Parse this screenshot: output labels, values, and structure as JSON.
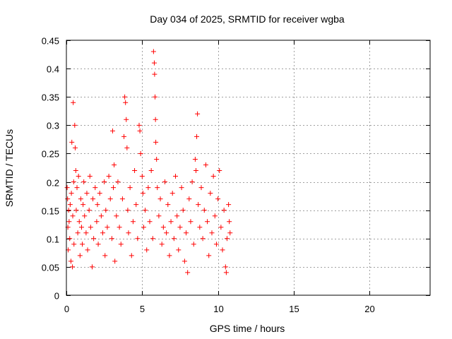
{
  "chart_data": {
    "type": "scatter",
    "title": "Day 034 of 2025, SRMTID for receiver wgba",
    "xlabel": "GPS time / hours",
    "ylabel": "SRMTID / TECUs",
    "xlim": [
      0,
      24
    ],
    "ylim": [
      0,
      0.45
    ],
    "xticks": [
      0,
      5,
      10,
      15,
      20
    ],
    "yticks": [
      0,
      0.05,
      0.1,
      0.15,
      0.2,
      0.25,
      0.3,
      0.35,
      0.4,
      0.45
    ],
    "grid": true,
    "legend": "none",
    "marker": "plus",
    "series": [
      {
        "name": "SRMTID",
        "color": "#ff0000",
        "points": [
          [
            0.05,
            0.19
          ],
          [
            0.08,
            0.17
          ],
          [
            0.1,
            0.12
          ],
          [
            0.12,
            0.08
          ],
          [
            0.15,
            0.15
          ],
          [
            0.18,
            0.13
          ],
          [
            0.22,
            0.1
          ],
          [
            0.25,
            0.16
          ],
          [
            0.3,
            0.06
          ],
          [
            0.33,
            0.18
          ],
          [
            0.36,
            0.27
          ],
          [
            0.4,
            0.05
          ],
          [
            0.42,
            0.14
          ],
          [
            0.45,
            0.34
          ],
          [
            0.48,
            0.2
          ],
          [
            0.5,
            0.09
          ],
          [
            0.55,
            0.3
          ],
          [
            0.58,
            0.26
          ],
          [
            0.62,
            0.22
          ],
          [
            0.65,
            0.15
          ],
          [
            0.7,
            0.19
          ],
          [
            0.75,
            0.11
          ],
          [
            0.8,
            0.21
          ],
          [
            0.85,
            0.13
          ],
          [
            0.9,
            0.07
          ],
          [
            0.95,
            0.17
          ],
          [
            1.0,
            0.12
          ],
          [
            1.05,
            0.09
          ],
          [
            1.1,
            0.16
          ],
          [
            1.15,
            0.2
          ],
          [
            1.2,
            0.14
          ],
          [
            1.3,
            0.11
          ],
          [
            1.35,
            0.18
          ],
          [
            1.4,
            0.08
          ],
          [
            1.5,
            0.15
          ],
          [
            1.55,
            0.21
          ],
          [
            1.6,
            0.12
          ],
          [
            1.7,
            0.05
          ],
          [
            1.75,
            0.17
          ],
          [
            1.8,
            0.1
          ],
          [
            1.9,
            0.19
          ],
          [
            2.0,
            0.13
          ],
          [
            2.05,
            0.16
          ],
          [
            2.1,
            0.09
          ],
          [
            2.2,
            0.18
          ],
          [
            2.3,
            0.14
          ],
          [
            2.4,
            0.11
          ],
          [
            2.5,
            0.2
          ],
          [
            2.55,
            0.07
          ],
          [
            2.6,
            0.15
          ],
          [
            2.7,
            0.12
          ],
          [
            2.8,
            0.21
          ],
          [
            2.9,
            0.17
          ],
          [
            3.0,
            0.1
          ],
          [
            3.05,
            0.29
          ],
          [
            3.1,
            0.19
          ],
          [
            3.15,
            0.23
          ],
          [
            3.2,
            0.06
          ],
          [
            3.3,
            0.14
          ],
          [
            3.4,
            0.2
          ],
          [
            3.5,
            0.12
          ],
          [
            3.6,
            0.09
          ],
          [
            3.7,
            0.17
          ],
          [
            3.8,
            0.28
          ],
          [
            3.85,
            0.35
          ],
          [
            3.9,
            0.34
          ],
          [
            3.95,
            0.31
          ],
          [
            4.0,
            0.26
          ],
          [
            4.05,
            0.15
          ],
          [
            4.1,
            0.11
          ],
          [
            4.2,
            0.19
          ],
          [
            4.3,
            0.07
          ],
          [
            4.4,
            0.13
          ],
          [
            4.5,
            0.22
          ],
          [
            4.6,
            0.16
          ],
          [
            4.7,
            0.1
          ],
          [
            4.8,
            0.3
          ],
          [
            4.85,
            0.29
          ],
          [
            4.9,
            0.25
          ],
          [
            5.0,
            0.21
          ],
          [
            5.05,
            0.18
          ],
          [
            5.1,
            0.12
          ],
          [
            5.2,
            0.15
          ],
          [
            5.3,
            0.08
          ],
          [
            5.4,
            0.19
          ],
          [
            5.5,
            0.13
          ],
          [
            5.6,
            0.22
          ],
          [
            5.7,
            0.1
          ],
          [
            5.75,
            0.43
          ],
          [
            5.8,
            0.41
          ],
          [
            5.82,
            0.39
          ],
          [
            5.85,
            0.35
          ],
          [
            5.88,
            0.31
          ],
          [
            5.9,
            0.27
          ],
          [
            5.95,
            0.24
          ],
          [
            6.0,
            0.19
          ],
          [
            6.1,
            0.14
          ],
          [
            6.2,
            0.17
          ],
          [
            6.3,
            0.09
          ],
          [
            6.4,
            0.12
          ],
          [
            6.5,
            0.2
          ],
          [
            6.6,
            0.11
          ],
          [
            6.7,
            0.16
          ],
          [
            6.8,
            0.07
          ],
          [
            6.9,
            0.13
          ],
          [
            7.0,
            0.18
          ],
          [
            7.1,
            0.1
          ],
          [
            7.2,
            0.21
          ],
          [
            7.3,
            0.14
          ],
          [
            7.4,
            0.08
          ],
          [
            7.5,
            0.12
          ],
          [
            7.6,
            0.19
          ],
          [
            7.7,
            0.15
          ],
          [
            7.8,
            0.06
          ],
          [
            7.9,
            0.11
          ],
          [
            8.0,
            0.04
          ],
          [
            8.1,
            0.17
          ],
          [
            8.2,
            0.13
          ],
          [
            8.3,
            0.2
          ],
          [
            8.4,
            0.09
          ],
          [
            8.5,
            0.24
          ],
          [
            8.55,
            0.22
          ],
          [
            8.6,
            0.28
          ],
          [
            8.65,
            0.32
          ],
          [
            8.7,
            0.16
          ],
          [
            8.8,
            0.12
          ],
          [
            8.9,
            0.19
          ],
          [
            9.0,
            0.1
          ],
          [
            9.1,
            0.15
          ],
          [
            9.2,
            0.23
          ],
          [
            9.3,
            0.13
          ],
          [
            9.4,
            0.07
          ],
          [
            9.5,
            0.18
          ],
          [
            9.6,
            0.11
          ],
          [
            9.7,
            0.21
          ],
          [
            9.8,
            0.14
          ],
          [
            9.9,
            0.09
          ],
          [
            10.0,
            0.17
          ],
          [
            10.1,
            0.22
          ],
          [
            10.2,
            0.12
          ],
          [
            10.3,
            0.08
          ],
          [
            10.4,
            0.15
          ],
          [
            10.5,
            0.05
          ],
          [
            10.55,
            0.04
          ],
          [
            10.6,
            0.1
          ],
          [
            10.7,
            0.16
          ],
          [
            10.75,
            0.13
          ],
          [
            10.8,
            0.11
          ]
        ]
      }
    ]
  }
}
